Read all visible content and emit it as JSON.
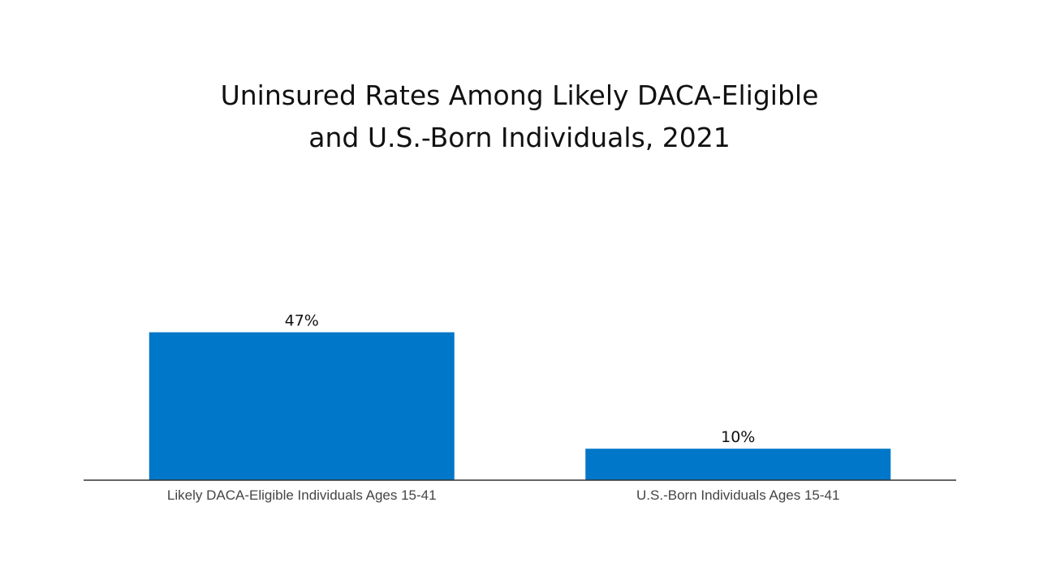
{
  "chart_data": {
    "type": "bar",
    "title": [
      "Uninsured Rates Among Likely DACA-Eligible",
      "and U.S.-Born Individuals, 2021"
    ],
    "categories": [
      "Likely DACA-Eligible Individuals Ages 15-41",
      "U.S.-Born Individuals Ages 15-41"
    ],
    "values": [
      47,
      10
    ],
    "value_labels": [
      "47%",
      "10%"
    ],
    "ylim": [
      0,
      100
    ],
    "xlabel": "",
    "ylabel": "",
    "grid": false,
    "legend": "none",
    "bar_color": "#0077c8",
    "axis_color": "#333333"
  }
}
